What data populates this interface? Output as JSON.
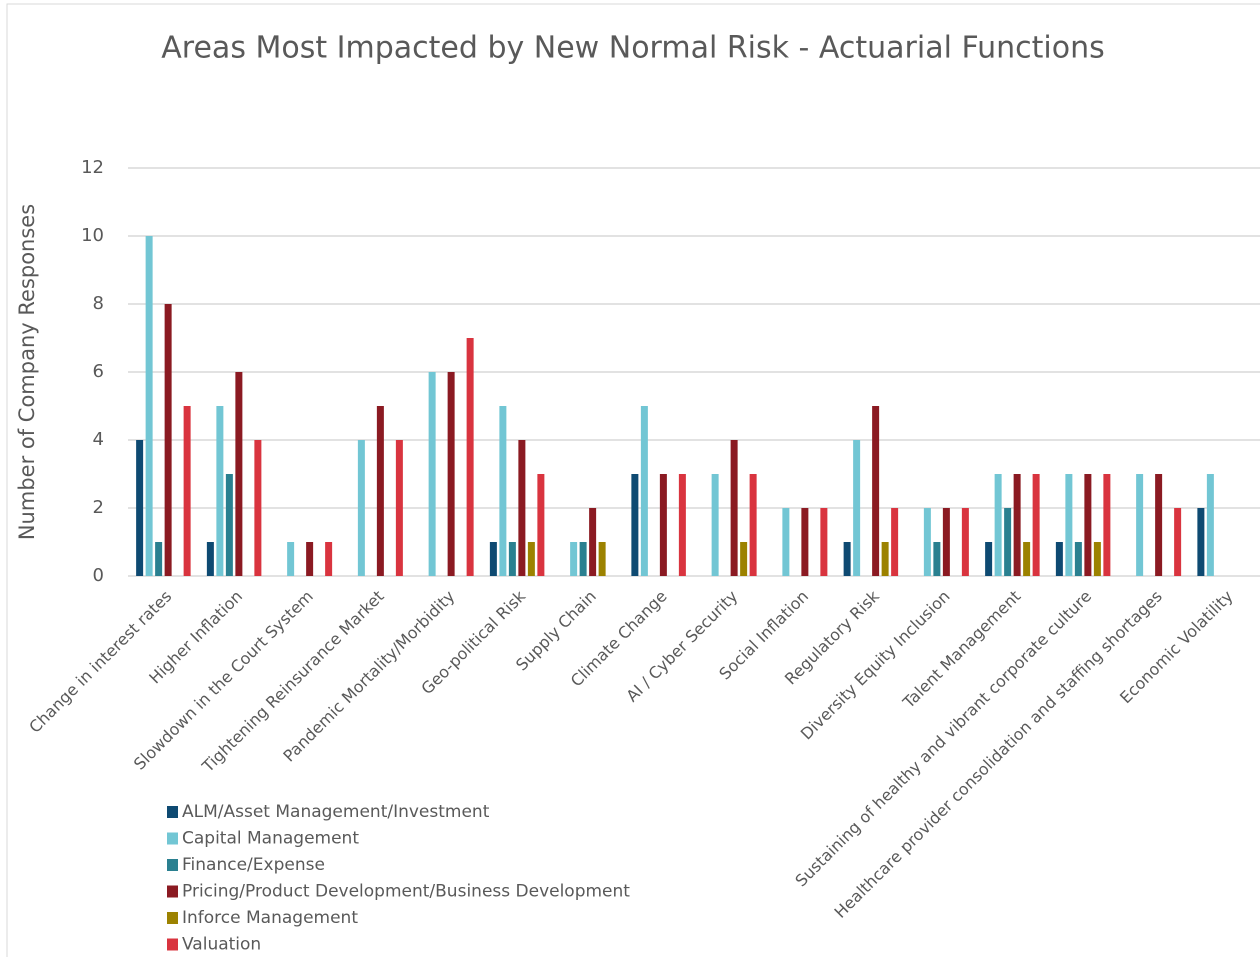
{
  "chart_data": {
    "type": "bar",
    "title": "Areas Most Impacted by New Normal Risk - Actuarial Functions",
    "y_label": "Number of Company Responses",
    "categories": [
      "Change in interest rates",
      "Higher Inflation",
      "Slowdown in the Court System",
      "Tightening Reinsurance Market",
      "Pandemic Mortality/Morbidity",
      "Geo-political Risk",
      "Supply Chain",
      "Climate Change",
      "AI / Cyber Security",
      "Social Inflation",
      "Regulatory Risk",
      "Diversity Equity Inclusion",
      "Talent Management",
      "Sustaining of healthy and vibrant corporate culture",
      "Healthcare provider consolidation and staffing shortages",
      "Economic Volatility"
    ],
    "series": [
      {
        "name": "ALM/Asset Management/Investment",
        "color": "#0e4a72",
        "values": [
          4,
          1,
          0,
          0,
          0,
          1,
          0,
          3,
          0,
          0,
          1,
          0,
          1,
          1,
          0,
          2
        ]
      },
      {
        "name": "Capital Management",
        "color": "#72c6d4",
        "values": [
          10,
          5,
          1,
          4,
          6,
          5,
          1,
          5,
          3,
          2,
          4,
          2,
          3,
          3,
          3,
          3
        ]
      },
      {
        "name": "Finance/Expense",
        "color": "#2a8090",
        "values": [
          1,
          3,
          0,
          0,
          0,
          1,
          1,
          0,
          0,
          0,
          0,
          1,
          2,
          1,
          0,
          0
        ]
      },
      {
        "name": "Pricing/Product Development/Business Development",
        "color": "#8b1a22",
        "values": [
          8,
          6,
          1,
          5,
          6,
          4,
          2,
          3,
          4,
          2,
          5,
          2,
          3,
          3,
          3,
          0
        ]
      },
      {
        "name": "Inforce Management",
        "color": "#9c8200",
        "values": [
          0,
          0,
          0,
          0,
          0,
          1,
          1,
          0,
          1,
          0,
          1,
          0,
          1,
          1,
          0,
          0
        ]
      },
      {
        "name": "Valuation",
        "color": "#d9343f",
        "values": [
          5,
          4,
          1,
          4,
          7,
          3,
          0,
          3,
          3,
          2,
          2,
          2,
          3,
          3,
          2,
          0
        ]
      }
    ],
    "ylim": [
      0,
      12
    ],
    "yticks": [
      0,
      2,
      4,
      6,
      8,
      10,
      12
    ],
    "grid": true,
    "legend": "bottom-left"
  }
}
